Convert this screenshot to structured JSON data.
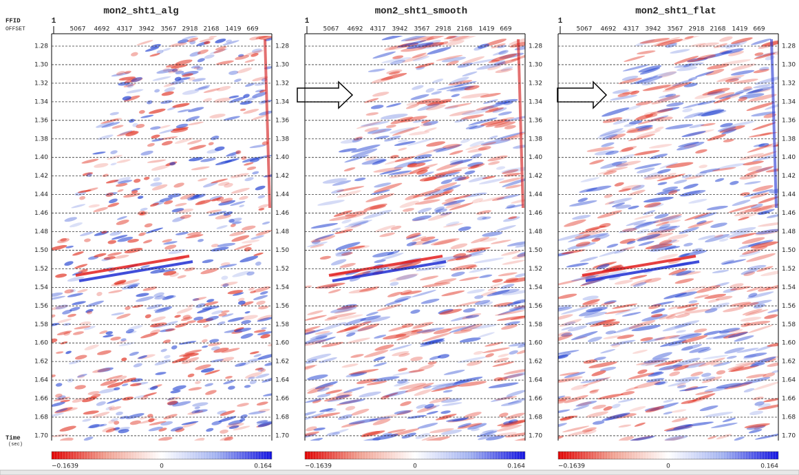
{
  "left_labels": {
    "ffid": "FFID",
    "offset": "OFFSET",
    "time": "Time",
    "time_unit": "(sec)"
  },
  "panels": [
    {
      "title": "mon2_sht1_alg",
      "ffid": "1"
    },
    {
      "title": "mon2_sht1_smooth",
      "ffid": "1"
    },
    {
      "title": "mon2_sht1_flat",
      "ffid": "1"
    }
  ],
  "offsets": [
    "5067",
    "4692",
    "4317",
    "3942",
    "3567",
    "2918",
    "2168",
    "1419",
    "669"
  ],
  "time_ticks": [
    "1.28",
    "1.30",
    "1.32",
    "1.34",
    "1.36",
    "1.38",
    "1.40",
    "1.42",
    "1.44",
    "1.46",
    "1.48",
    "1.50",
    "1.52",
    "1.54",
    "1.56",
    "1.58",
    "1.60",
    "1.62",
    "1.64",
    "1.66",
    "1.68",
    "1.70"
  ],
  "colorbar": {
    "min": "−0.1639",
    "mid": "0",
    "max": "0.164"
  }
}
